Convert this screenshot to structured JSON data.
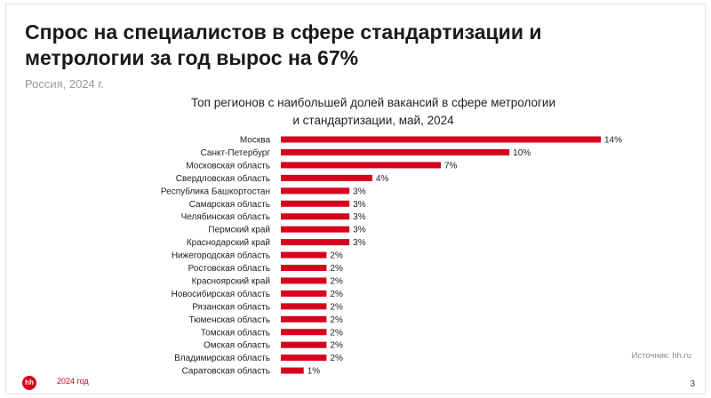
{
  "headline": "Спрос на специалистов в сфере стандартизации и метрологии за год вырос на 67%",
  "subtitle": "Россия, 2024 г.",
  "chart_data": {
    "type": "bar",
    "orientation": "horizontal",
    "title_lines": [
      "Топ регионов с наибольшей долей вакансий в сфере метрологии",
      "и стандартизации, май, 2024"
    ],
    "categories": [
      "Москва",
      "Санкт-Петербург",
      "Московская область",
      "Свердловская область",
      "Республика Башкортостан",
      "Самарская область",
      "Челябинская область",
      "Пермский край",
      "Краснодарский край",
      "Нижегородская область",
      "Ростовская область",
      "Красноярский край",
      "Новосибирская область",
      "Рязанская область",
      "Тюменская область",
      "Томская область",
      "Омская область",
      "Владимирская область",
      "Саратовская область"
    ],
    "values": [
      14,
      10,
      7,
      4,
      3,
      3,
      3,
      3,
      3,
      2,
      2,
      2,
      2,
      2,
      2,
      2,
      2,
      2,
      1
    ],
    "labels": [
      "14%",
      "10%",
      "7%",
      "4%",
      "3%",
      "3%",
      "3%",
      "3%",
      "3%",
      "2%",
      "2%",
      "2%",
      "2%",
      "2%",
      "2%",
      "2%",
      "2%",
      "2%",
      "1%"
    ],
    "xlim": [
      0,
      14
    ],
    "bar_color": "#d6001c",
    "grid": false
  },
  "source": "Источник: hh.ru",
  "logo_text": "hh",
  "footer_year": "2024 год",
  "page_number": "3",
  "colors": {
    "brand": "#d6001c",
    "muted": "#9a9a9a"
  }
}
